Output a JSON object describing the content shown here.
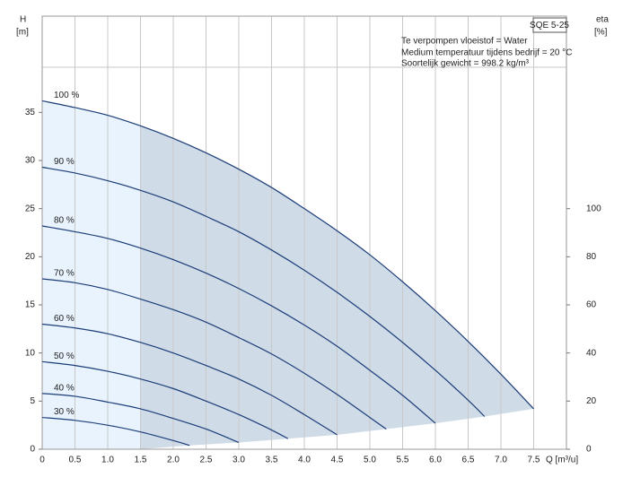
{
  "chart_data": {
    "type": "line",
    "title": "SQE 5-25",
    "annotations": [
      "Te verpompen vloeistof = Water",
      "Medium temperatuur tijdens bedrijf = 20 °C",
      "Soortelijk gewicht = 998.2 kg/m³"
    ],
    "x_label": "Q [m³/u]",
    "y_label": "H",
    "y_unit": "[m]",
    "y2_label": "eta",
    "y2_unit": "[%]",
    "xlim": [
      0,
      8
    ],
    "ylim": [
      0,
      45
    ],
    "y2lim": [
      0,
      180
    ],
    "xticks": [
      0,
      0.5,
      {
        "value": 1,
        "label": "1.0"
      },
      1.5,
      {
        "value": 2,
        "label": "2.0"
      },
      2.5,
      {
        "value": 3,
        "label": "3.0"
      },
      3.5,
      {
        "value": 4,
        "label": "4.0"
      },
      4.5,
      {
        "value": 5,
        "label": "5.0"
      },
      5.5,
      {
        "value": 6,
        "label": "6.0"
      },
      6.5,
      {
        "value": 7,
        "label": "7.0"
      },
      7.5
    ],
    "yticks": [
      0,
      5,
      10,
      15,
      20,
      25,
      30,
      35
    ],
    "y2ticks": [
      0,
      20,
      40,
      60,
      80,
      100
    ],
    "grid": true,
    "light_region_end": 1.5,
    "line_color": "#1c3d78",
    "light_fill": "#e8f3fd",
    "dark_fill": "#cfdbe7",
    "series": [
      {
        "name": "100 %",
        "x": [
          0,
          0.5,
          1,
          1.5,
          2,
          2.5,
          3,
          3.5,
          4,
          4.5,
          5,
          5.5,
          6,
          6.5,
          7,
          7.5
        ],
        "values": [
          36.2,
          35.5,
          34.7,
          33.6,
          32.3,
          30.8,
          29.1,
          27.2,
          25.0,
          22.7,
          20.2,
          17.4,
          14.4,
          11.2,
          7.8,
          4.2
        ]
      },
      {
        "name": "90 %",
        "x": [
          0,
          0.5,
          1,
          1.5,
          2,
          2.5,
          3,
          3.5,
          4,
          4.5,
          5,
          5.5,
          6,
          6.5,
          6.75
        ],
        "values": [
          29.3,
          28.7,
          27.9,
          26.9,
          25.7,
          24.2,
          22.6,
          20.7,
          18.6,
          16.3,
          13.8,
          11.1,
          8.2,
          5.1,
          3.4
        ]
      },
      {
        "name": "80 %",
        "x": [
          0,
          0.5,
          1,
          1.5,
          2,
          2.5,
          3,
          3.5,
          4,
          4.5,
          5,
          5.5,
          6
        ],
        "values": [
          23.2,
          22.6,
          21.9,
          20.9,
          19.7,
          18.3,
          16.7,
          14.9,
          12.9,
          10.7,
          8.2,
          5.6,
          2.7
        ]
      },
      {
        "name": "70 %",
        "x": [
          0,
          0.5,
          1,
          1.5,
          2,
          2.5,
          3,
          3.5,
          4,
          4.5,
          5,
          5.25
        ],
        "values": [
          17.7,
          17.3,
          16.6,
          15.6,
          14.5,
          13.2,
          11.6,
          9.9,
          7.9,
          5.7,
          3.3,
          2.1
        ]
      },
      {
        "name": "60 %",
        "x": [
          0,
          0.5,
          1,
          1.5,
          2,
          2.5,
          3,
          3.5,
          4,
          4.5
        ],
        "values": [
          13.0,
          12.6,
          12.0,
          11.1,
          10.0,
          8.7,
          7.3,
          5.6,
          3.6,
          1.5
        ]
      },
      {
        "name": "50 %",
        "x": [
          0,
          0.5,
          1,
          1.5,
          2,
          2.5,
          3,
          3.5,
          3.75
        ],
        "values": [
          9.1,
          8.7,
          8.1,
          7.3,
          6.3,
          5.0,
          3.6,
          2.0,
          1.1
        ]
      },
      {
        "name": "40 %",
        "x": [
          0,
          0.5,
          1,
          1.5,
          2,
          2.5,
          3
        ],
        "values": [
          5.8,
          5.5,
          4.9,
          4.2,
          3.2,
          2.1,
          0.7
        ]
      },
      {
        "name": "30 %",
        "x": [
          0,
          0.5,
          1,
          1.5,
          2,
          2.25
        ],
        "values": [
          3.3,
          3.0,
          2.5,
          1.8,
          0.9,
          0.4
        ]
      }
    ]
  }
}
